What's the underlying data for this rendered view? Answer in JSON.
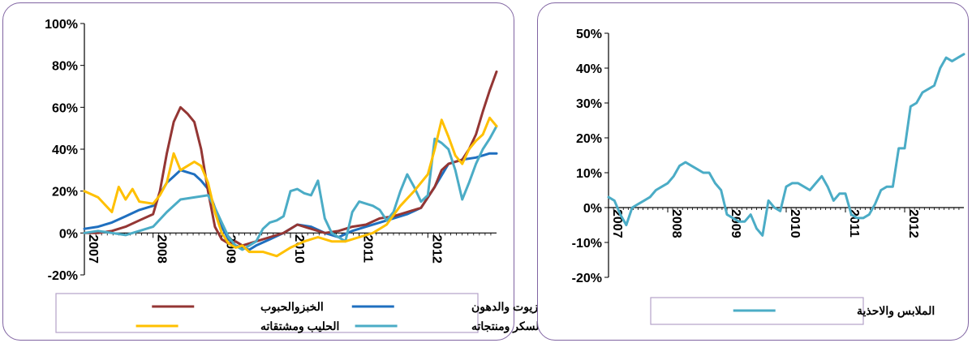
{
  "chart_data": [
    {
      "type": "line",
      "ylim": [
        -20,
        100
      ],
      "y_ticks": [
        "100%",
        "80%",
        "60%",
        "40%",
        "20%",
        "0%",
        "-20%"
      ],
      "x_ticks": [
        "2007",
        "2008",
        "2009",
        "2010",
        "2011",
        "2012"
      ],
      "legend": {
        "columns": 2
      },
      "series": [
        {
          "name": "الزيوت والدهون",
          "color": "#1f6fbf",
          "x": [
            2007.0,
            2007.2,
            2007.4,
            2007.6,
            2007.8,
            2008.0,
            2008.2,
            2008.3,
            2008.4,
            2008.5,
            2008.6,
            2008.7,
            2008.8,
            2008.9,
            2009.0,
            2009.1,
            2009.2,
            2009.3,
            2009.4,
            2009.5,
            2009.7,
            2009.9,
            2010.1,
            2010.3,
            2010.5,
            2010.7,
            2010.9,
            2011.1,
            2011.3,
            2011.5,
            2011.7,
            2011.9,
            2012.1,
            2012.3,
            2012.5,
            2012.7,
            2012.9,
            2013.0
          ],
          "y": [
            2,
            3,
            5,
            8,
            11,
            13,
            24,
            27,
            30,
            29,
            28,
            25,
            21,
            12,
            3,
            -3,
            -6,
            -7,
            -8,
            -6,
            -3,
            0,
            4,
            3,
            0,
            -2,
            1,
            3,
            5,
            7,
            9,
            12,
            22,
            33,
            35,
            36,
            38,
            38
          ]
        },
        {
          "name": "الخبزوالحبوب",
          "color": "#943634",
          "x": [
            2007.0,
            2007.2,
            2007.4,
            2007.6,
            2007.8,
            2008.0,
            2008.1,
            2008.2,
            2008.3,
            2008.4,
            2008.5,
            2008.6,
            2008.7,
            2008.8,
            2008.9,
            2009.0,
            2009.1,
            2009.2,
            2009.3,
            2009.4,
            2009.5,
            2009.7,
            2009.9,
            2010.1,
            2010.3,
            2010.5,
            2010.7,
            2010.9,
            2011.1,
            2011.3,
            2011.5,
            2011.7,
            2011.9,
            2012.1,
            2012.2,
            2012.3,
            2012.4,
            2012.5,
            2012.6,
            2012.7,
            2012.8,
            2012.9,
            2013.0
          ],
          "y": [
            0,
            0,
            1,
            3,
            6,
            9,
            20,
            38,
            53,
            60,
            57,
            53,
            40,
            20,
            3,
            -3,
            -5,
            -4,
            -6,
            -5,
            -4,
            -2,
            0,
            4,
            2,
            0,
            1,
            3,
            4,
            7,
            8,
            10,
            12,
            22,
            30,
            33,
            34,
            35,
            40,
            47,
            58,
            68,
            77
          ]
        },
        {
          "name": "السكر ومنتجاته",
          "color": "#4bacc6",
          "x": [
            2007.0,
            2007.2,
            2007.4,
            2007.6,
            2007.8,
            2008.0,
            2008.2,
            2008.4,
            2008.6,
            2008.8,
            2008.9,
            2009.0,
            2009.1,
            2009.2,
            2009.3,
            2009.4,
            2009.5,
            2009.6,
            2009.7,
            2009.8,
            2009.9,
            2010.0,
            2010.1,
            2010.2,
            2010.3,
            2010.4,
            2010.5,
            2010.6,
            2010.7,
            2010.8,
            2010.9,
            2011.0,
            2011.1,
            2011.2,
            2011.3,
            2011.4,
            2011.5,
            2011.6,
            2011.7,
            2011.8,
            2011.9,
            2012.0,
            2012.1,
            2012.2,
            2012.3,
            2012.4,
            2012.5,
            2012.6,
            2012.7,
            2012.8,
            2012.9,
            2013.0
          ],
          "y": [
            0,
            1,
            0,
            -1,
            1,
            3,
            10,
            16,
            17,
            18,
            12,
            5,
            -2,
            -6,
            -8,
            -6,
            -4,
            2,
            5,
            6,
            8,
            20,
            21,
            19,
            18,
            25,
            7,
            0,
            -2,
            -4,
            10,
            15,
            14,
            13,
            11,
            6,
            10,
            20,
            28,
            22,
            15,
            18,
            45,
            43,
            40,
            30,
            16,
            24,
            33,
            40,
            45,
            51
          ]
        },
        {
          "name": "الحليب ومشتقاته",
          "color": "#ffc000",
          "x": [
            2007.0,
            2007.2,
            2007.4,
            2007.5,
            2007.6,
            2007.7,
            2007.8,
            2008.0,
            2008.1,
            2008.2,
            2008.3,
            2008.4,
            2008.5,
            2008.6,
            2008.7,
            2008.8,
            2008.9,
            2009.0,
            2009.1,
            2009.2,
            2009.3,
            2009.4,
            2009.6,
            2009.8,
            2010.0,
            2010.2,
            2010.4,
            2010.6,
            2010.8,
            2011.0,
            2011.2,
            2011.4,
            2011.6,
            2011.8,
            2012.0,
            2012.1,
            2012.2,
            2012.3,
            2012.4,
            2012.5,
            2012.6,
            2012.7,
            2012.8,
            2012.9,
            2013.0
          ],
          "y": [
            20,
            17,
            10,
            22,
            16,
            21,
            15,
            14,
            18,
            24,
            38,
            30,
            32,
            34,
            32,
            24,
            10,
            0,
            -5,
            -7,
            -6,
            -9,
            -9,
            -11,
            -7,
            -4,
            -2,
            -4,
            -4,
            -2,
            0,
            4,
            13,
            20,
            28,
            40,
            54,
            46,
            37,
            33,
            40,
            44,
            47,
            55,
            51
          ]
        }
      ]
    },
    {
      "type": "line",
      "ylim": [
        -20,
        50
      ],
      "y_ticks": [
        "50%",
        "40%",
        "30%",
        "20%",
        "10%",
        "0%",
        "-10%",
        "-20%"
      ],
      "x_ticks": [
        "2007",
        "2008",
        "2009",
        "2010",
        "2011",
        "2012"
      ],
      "series": [
        {
          "name": "الملابس والاحذية",
          "color": "#4bacc6",
          "x": [
            2007.0,
            2007.1,
            2007.2,
            2007.3,
            2007.4,
            2007.5,
            2007.6,
            2007.7,
            2007.8,
            2007.9,
            2008.0,
            2008.1,
            2008.2,
            2008.3,
            2008.4,
            2008.5,
            2008.6,
            2008.7,
            2008.8,
            2008.9,
            2009.0,
            2009.1,
            2009.2,
            2009.3,
            2009.4,
            2009.5,
            2009.6,
            2009.7,
            2009.8,
            2009.9,
            2010.0,
            2010.1,
            2010.2,
            2010.3,
            2010.4,
            2010.5,
            2010.6,
            2010.7,
            2010.8,
            2010.9,
            2011.0,
            2011.1,
            2011.2,
            2011.3,
            2011.4,
            2011.5,
            2011.6,
            2011.7,
            2011.8,
            2011.9,
            2012.0,
            2012.1,
            2012.2,
            2012.3,
            2012.4,
            2012.5,
            2012.6,
            2012.7,
            2012.8,
            2012.9,
            2013.0
          ],
          "y": [
            3,
            2,
            -2,
            -5,
            0,
            1,
            2,
            3,
            5,
            6,
            7,
            9,
            12,
            13,
            12,
            11,
            10,
            10,
            7,
            5,
            -2,
            -3,
            -4,
            -4,
            -2,
            -6,
            -8,
            2,
            0,
            -1,
            6,
            7,
            7,
            6,
            5,
            7,
            9,
            6,
            2,
            4,
            4,
            -2,
            -3,
            -3,
            -2,
            1,
            5,
            6,
            6,
            17,
            17,
            29,
            30,
            33,
            34,
            35,
            40,
            43,
            42,
            43,
            44
          ]
        }
      ]
    }
  ],
  "colors": {
    "panel_border": "#8064a2",
    "legend_border": "#b3a2c7"
  }
}
